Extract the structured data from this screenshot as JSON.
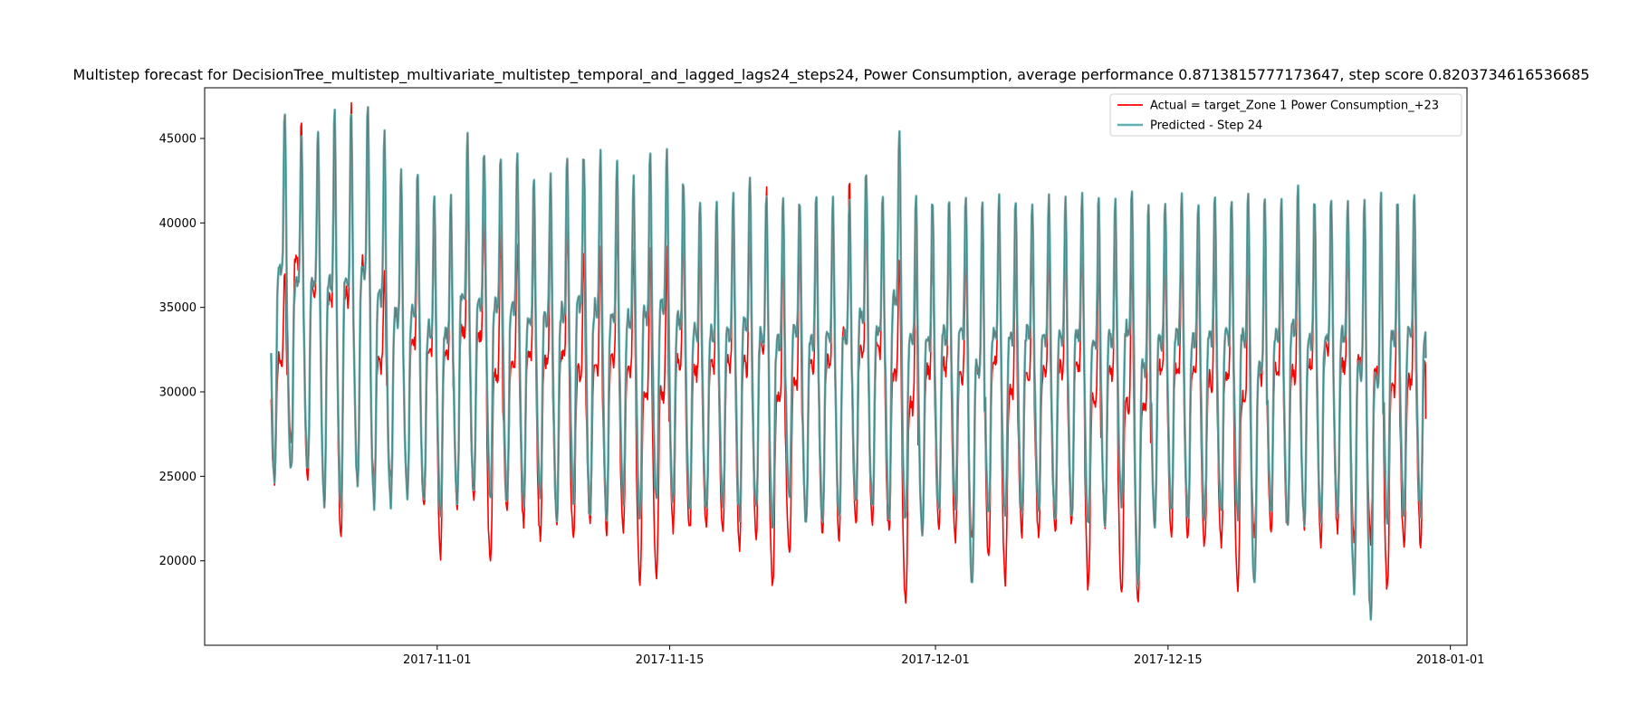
{
  "chart_data": {
    "type": "line",
    "title": "Multistep forecast for DecisionTree_multistep_multivariate_multistep_temporal_and_lagged_lags24_steps24, Power Consumption, average performance 0.8713815777173647, step score 0.8203734616536685",
    "xlabel": "",
    "ylabel": "",
    "x_range": [
      "2017-10-18",
      "2018-01-02"
    ],
    "data_range": [
      "2017-10-22T00:00",
      "2017-12-30T12:00"
    ],
    "ylim": [
      15000,
      48000
    ],
    "x_ticks": [
      "2017-11-01",
      "2017-11-15",
      "2017-12-01",
      "2017-12-15",
      "2018-01-01"
    ],
    "y_ticks": [
      20000,
      25000,
      30000,
      35000,
      40000,
      45000
    ],
    "grid": false,
    "legend_position": "top-right",
    "series": [
      {
        "name": "Actual = target_Zone 1 Power Consumption_+23",
        "color": "#ff0000",
        "daily_peaks": [
          37400,
          46000,
          45000,
          44800,
          46700,
          46800,
          37000,
          42000,
          39500,
          39600,
          41300,
          41500,
          40600,
          39800,
          38800,
          40000,
          39800,
          39900,
          38600,
          38400,
          39800,
          38800,
          38700,
          38400,
          39300,
          38600,
          38900,
          39500,
          39600,
          41700,
          38200,
          38700,
          38900,
          39500,
          42600,
          40300,
          40400,
          38100,
          38300,
          38500,
          38800,
          38300,
          38700,
          41000,
          38300,
          38400,
          38100,
          38900,
          38500,
          38000,
          38200,
          38000,
          37800,
          38300,
          38500,
          38400,
          38200,
          38900,
          38200,
          38300,
          38500,
          38100,
          39000,
          40900,
          38900,
          39800,
          38900,
          39800,
          38100,
          40000,
          38800,
          38500,
          38900,
          39300,
          38600,
          38800,
          38300,
          38400,
          38900,
          39300,
          38600,
          44000,
          38000
        ],
        "daily_troughs": [
          24800,
          26900,
          24400,
          23200,
          21500,
          25100,
          24700,
          24700,
          24600,
          22900,
          20400,
          23400,
          23800,
          19600,
          23000,
          22200,
          21200,
          22100,
          21100,
          22100,
          21700,
          22000,
          18600,
          18800,
          22000,
          21700,
          21800,
          21600,
          20900,
          21300,
          18400,
          20100,
          22100,
          21300,
          21200,
          21900,
          22100,
          21700,
          17400,
          21700,
          21900,
          21500,
          21200,
          19900,
          18900,
          21500,
          21700,
          21500,
          22300,
          18300,
          22200,
          18100,
          17600,
          22200,
          21700,
          21400,
          20800,
          20800,
          18200,
          21500,
          21800,
          21700,
          21900,
          21200,
          21900,
          21400,
          21100,
          18200,
          20800,
          21000,
          21000,
          20900,
          20800,
          21000,
          20600,
          20800,
          18200,
          20800,
          20600,
          21100,
          20600,
          21800,
          19800
        ],
        "end_value": 28400
      },
      {
        "name": "Predicted - Step 24",
        "color": "#5fb3b3",
        "daily_peaks": [
          46800,
          45200,
          45100,
          46600,
          46700,
          46600,
          45200,
          43100,
          42900,
          41400,
          41500,
          45100,
          44200,
          43800,
          43900,
          42600,
          42600,
          43900,
          43900,
          43900,
          43500,
          42500,
          43900,
          44200,
          42500,
          41500,
          41400,
          41400,
          42900,
          41400,
          41500,
          41400,
          41400,
          41400,
          41400,
          43000,
          41500,
          45400,
          41500,
          41400,
          41400,
          41400,
          41400,
          41500,
          41400,
          41400,
          41400,
          41500,
          41600,
          41400,
          41400,
          41500,
          41500,
          41400,
          41500,
          41400,
          41500,
          41400,
          41400,
          41400,
          41400,
          42400,
          41400,
          41400,
          41400,
          41400,
          41400,
          41400,
          41700,
          41400,
          41500,
          43000,
          41400,
          41400,
          41400,
          43000,
          43000,
          41400,
          43000,
          43000,
          41400,
          41500,
          41400
        ],
        "daily_troughs": [
          25000,
          25200,
          25500,
          23400,
          23300,
          24700,
          23400,
          23200,
          23700,
          23600,
          23000,
          23500,
          24000,
          23800,
          23500,
          23200,
          23700,
          22600,
          23800,
          23000,
          22700,
          23600,
          22500,
          23500,
          23500,
          23000,
          22700,
          23200,
          22500,
          22900,
          21900,
          23600,
          22300,
          22400,
          22500,
          23400,
          23000,
          22500,
          22500,
          21900,
          22800,
          23200,
          18400,
          22700,
          22600,
          23000,
          22900,
          22500,
          22700,
          21900,
          22400,
          23300,
          18400,
          22100,
          22900,
          22400,
          22600,
          22600,
          22800,
          18400,
          22700,
          22500,
          22400,
          22500,
          22600,
          18400,
          16600,
          22500,
          22600,
          22800,
          22500,
          22300,
          22600,
          18400,
          22500,
          22600,
          22400,
          22600,
          22800,
          22300,
          22500,
          18400,
          19700
        ],
        "end_value": 32000
      }
    ]
  }
}
